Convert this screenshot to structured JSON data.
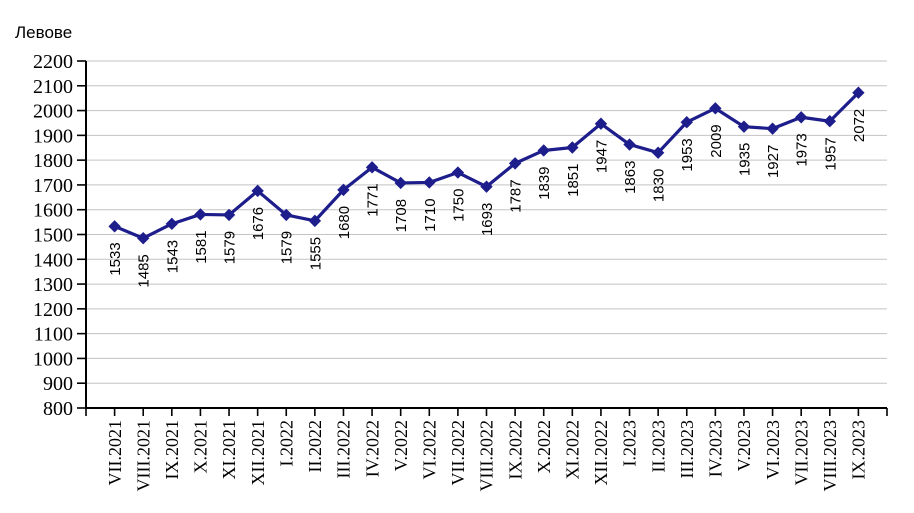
{
  "title": "Левове",
  "chart_data": {
    "type": "line",
    "title": "Левове",
    "ylabel": "Левове",
    "xlabel": "",
    "categories": [
      "VII.2021",
      "VIII.2021",
      "IX.2021",
      "X.2021",
      "XI.2021",
      "XII.2021",
      "I.2022",
      "II.2022",
      "III.2022",
      "IV.2022",
      "V.2022",
      "VI.2022",
      "VII.2022",
      "VIII.2022",
      "IX.2022",
      "X.2022",
      "XI.2022",
      "XII.2022",
      "I.2023",
      "II.2023",
      "III.2023",
      "IV.2023",
      "V.2023",
      "VI.2023",
      "VII.2023",
      "VIII.2023",
      "IX.2023"
    ],
    "values": [
      1533,
      1485,
      1543,
      1581,
      1579,
      1676,
      1579,
      1555,
      1680,
      1771,
      1708,
      1710,
      1750,
      1693,
      1787,
      1839,
      1851,
      1947,
      1863,
      1830,
      1953,
      2009,
      1935,
      1927,
      1973,
      1957,
      2072
    ],
    "series": [
      {
        "name": "Левове",
        "values": [
          1533,
          1485,
          1543,
          1581,
          1579,
          1676,
          1579,
          1555,
          1680,
          1771,
          1708,
          1710,
          1750,
          1693,
          1787,
          1839,
          1851,
          1947,
          1863,
          1830,
          1953,
          2009,
          1935,
          1927,
          1973,
          1957,
          2072
        ]
      }
    ],
    "ylim": [
      800,
      2200
    ],
    "ytick_step": 100,
    "grid": true,
    "legend_position": "none",
    "data_labels_visible": true,
    "label_rotation_degrees": 90,
    "marker": "diamond",
    "line_color": "#1D1D8C",
    "marker_color": "#1D1D8C",
    "gridline_color": "#C3C3C3",
    "axis_color": "#000000",
    "text_color": "#000000"
  }
}
